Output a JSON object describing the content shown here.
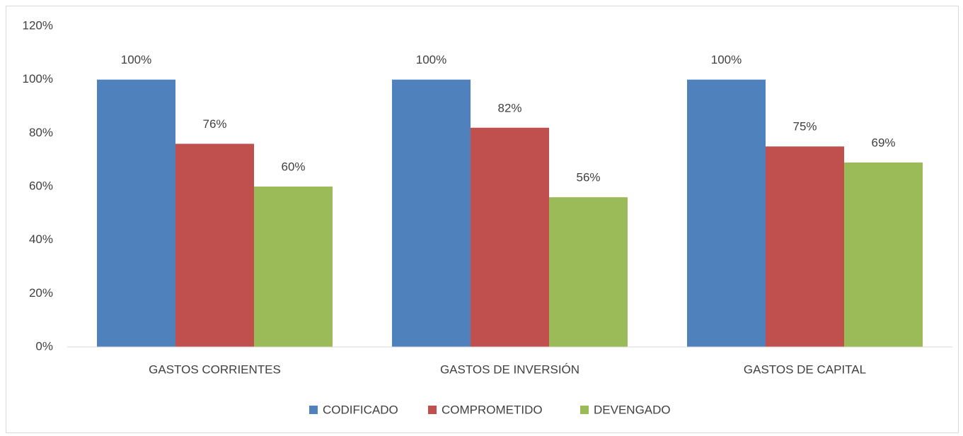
{
  "chart_data": {
    "type": "bar",
    "categories": [
      "GASTOS CORRIENTES",
      "GASTOS DE INVERSIÓN",
      "GASTOS DE CAPITAL"
    ],
    "series": [
      {
        "name": "CODIFICADO",
        "color": "#4f81bd",
        "values": [
          100,
          100,
          100
        ],
        "value_labels": [
          "100%",
          "100%",
          "100%"
        ]
      },
      {
        "name": "COMPROMETIDO",
        "color": "#c0504d",
        "values": [
          76,
          82,
          75
        ],
        "value_labels": [
          "76%",
          "82%",
          "75%"
        ]
      },
      {
        "name": "DEVENGADO",
        "color": "#9bbb59",
        "values": [
          60,
          56,
          69
        ],
        "value_labels": [
          "60%",
          "56%",
          "69%"
        ]
      }
    ],
    "ylim": [
      0,
      120
    ],
    "yticks": [
      {
        "value": 0,
        "label": "0%"
      },
      {
        "value": 20,
        "label": "20%"
      },
      {
        "value": 40,
        "label": "40%"
      },
      {
        "value": 60,
        "label": "60%"
      },
      {
        "value": 80,
        "label": "80%"
      },
      {
        "value": 100,
        "label": "100%"
      },
      {
        "value": 120,
        "label": "120%"
      }
    ],
    "grid": false,
    "legend": "bottom"
  }
}
